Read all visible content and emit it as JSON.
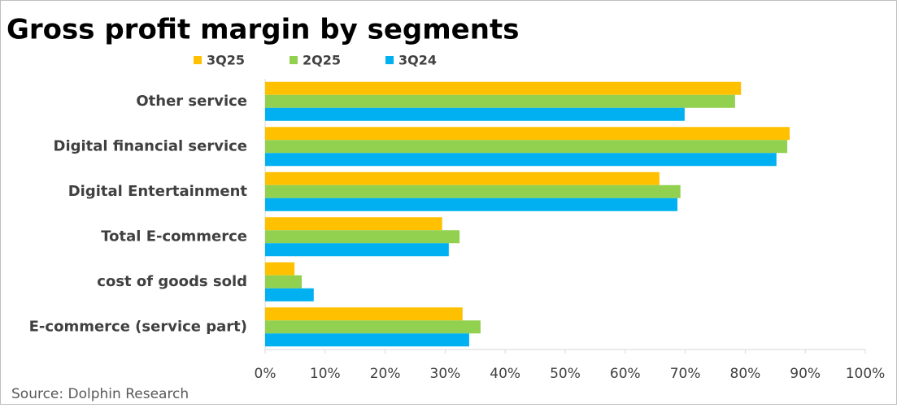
{
  "chart_data": {
    "type": "bar",
    "orientation": "horizontal",
    "title": "Gross profit margin by segments",
    "source": "Source: Dolphin Research",
    "categories": [
      "Other service",
      "Digital financial service",
      "Digital Entertainment",
      "Total E-commerce",
      "cost of goods sold",
      "E-commerce (service part)"
    ],
    "series": [
      {
        "name": "3Q25",
        "color": "#ffc000",
        "values": [
          79.3,
          87.4,
          65.7,
          29.5,
          4.9,
          32.9
        ]
      },
      {
        "name": "2Q25",
        "color": "#92d050",
        "values": [
          78.3,
          87.0,
          69.2,
          32.4,
          6.1,
          35.9
        ]
      },
      {
        "name": "3Q24",
        "color": "#00b0f0",
        "values": [
          69.9,
          85.2,
          68.7,
          30.6,
          8.1,
          34.0
        ]
      }
    ],
    "xlim": [
      0,
      100
    ],
    "xticks": [
      {
        "value": 0,
        "label": "0%"
      },
      {
        "value": 10,
        "label": "10%"
      },
      {
        "value": 20,
        "label": "20%"
      },
      {
        "value": 30,
        "label": "30%"
      },
      {
        "value": 40,
        "label": "40%"
      },
      {
        "value": 50,
        "label": "50%"
      },
      {
        "value": 60,
        "label": "60%"
      },
      {
        "value": 70,
        "label": "70%"
      },
      {
        "value": 80,
        "label": "80%"
      },
      {
        "value": 90,
        "label": "90%"
      },
      {
        "value": 100,
        "label": "100%"
      }
    ]
  }
}
